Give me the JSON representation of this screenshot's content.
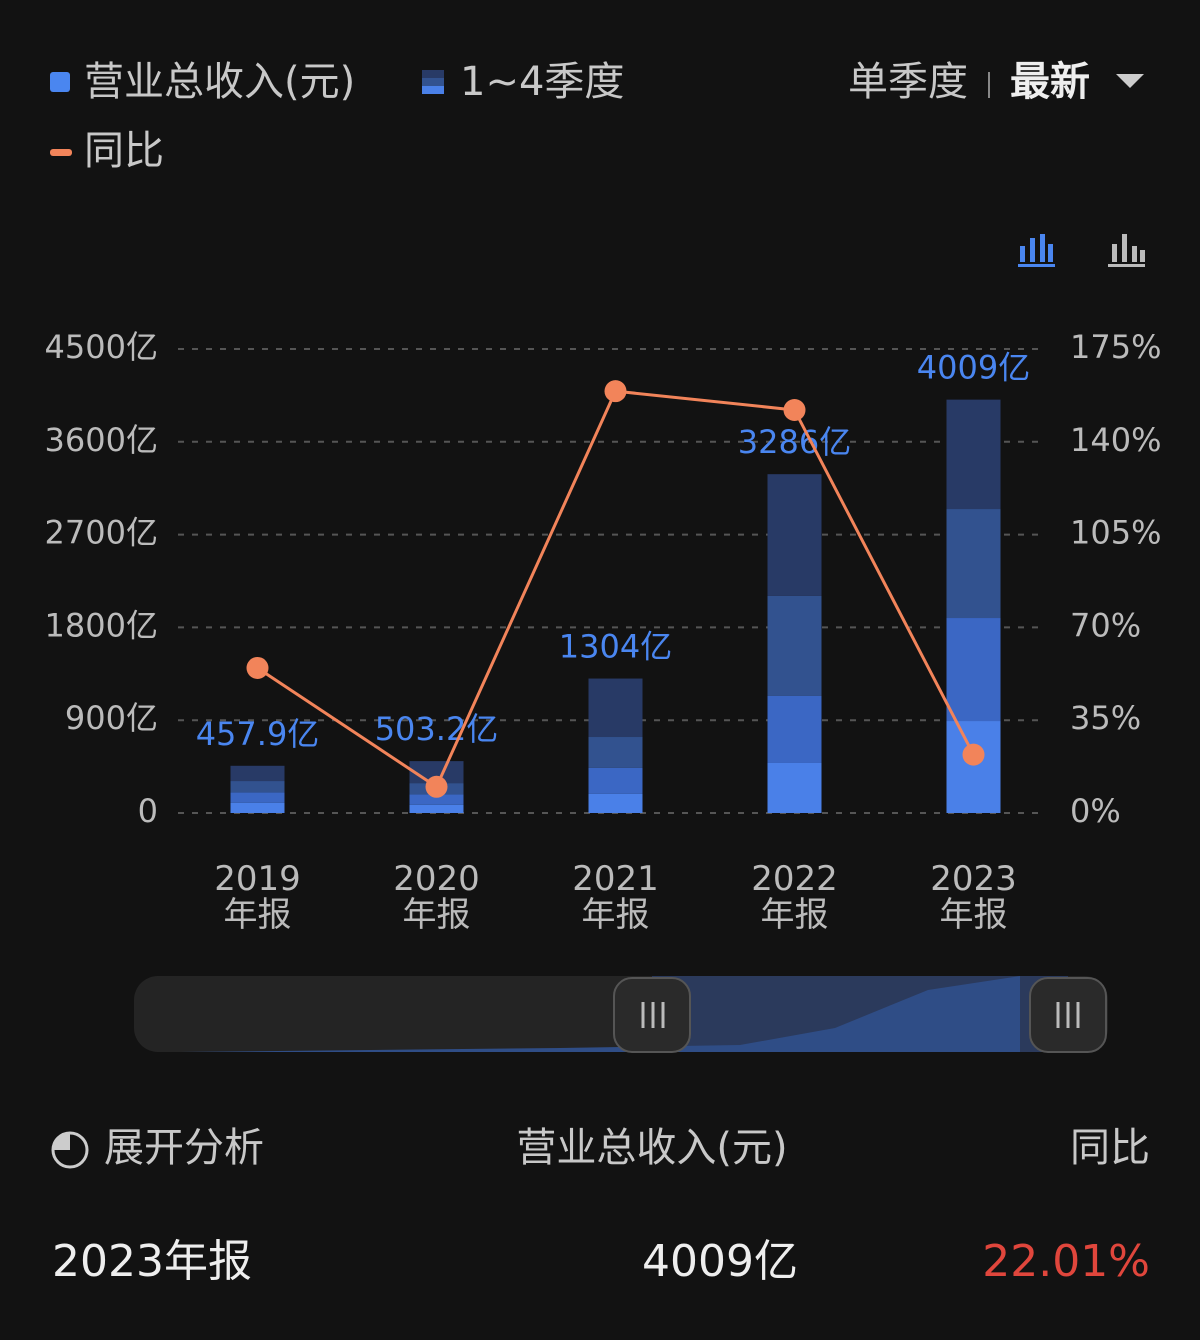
{
  "chart_data": {
    "type": "stacked-bar-line",
    "categories": [
      "2019\n年报",
      "2020\n年报",
      "2021\n年报",
      "2022\n年报",
      "2023\n年报"
    ],
    "ylim": [
      0,
      4500
    ],
    "yticks": [
      0,
      {
        "value": 900,
        "label": "900亿"
      },
      {
        "value": 1800,
        "label": "1800亿"
      },
      {
        "value": 2700,
        "label": "2700亿"
      },
      {
        "value": 3600,
        "label": "3600亿"
      },
      {
        "value": 4500,
        "label": "4500亿"
      }
    ],
    "y2lim": [
      0,
      175
    ],
    "y2ticks": [
      {
        "value": 0,
        "label": "0%"
      },
      {
        "value": 35,
        "label": "35%"
      },
      {
        "value": 70,
        "label": "70%"
      },
      {
        "value": 105,
        "label": "105%"
      },
      {
        "value": 140,
        "label": "140%"
      },
      {
        "value": 175,
        "label": "175%"
      }
    ],
    "grid": true,
    "total_series": {
      "name": "营业总收入(元)",
      "color": "#4a86f0",
      "values": [
        457.9,
        503.2,
        1304,
        3286,
        4009
      ],
      "value_labels": [
        "457.9亿",
        "503.2亿",
        "1304亿",
        "3286亿",
        "4009亿"
      ]
    },
    "quarter_series": {
      "name": "1~4季度",
      "colors": [
        "#4a80e8",
        "#3b67c4",
        "#32528f",
        "#283a66"
      ],
      "values": [
        [
          100,
          100,
          110,
          147.9
        ],
        [
          80,
          100,
          110,
          213.2
        ],
        [
          185,
          252,
          300,
          567
        ],
        [
          485,
          650,
          970,
          1181
        ],
        [
          892,
          999,
          1057,
          1061
        ]
      ]
    },
    "line_series": {
      "name": "同比",
      "color": "#f2845a",
      "axis": "y2",
      "values": [
        54.7,
        9.89,
        159.1,
        152.0,
        22.01
      ]
    }
  },
  "controls": {
    "single_quarter": "单季度",
    "latest": "最新"
  },
  "summary": {
    "headers": [
      "展开分析",
      "营业总收入(元)",
      "同比"
    ],
    "row": [
      "2023年报",
      "4009亿",
      "22.01%"
    ]
  }
}
